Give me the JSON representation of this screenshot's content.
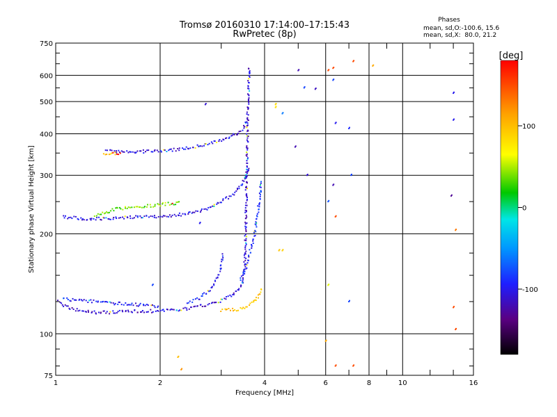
{
  "chart_data": {
    "type": "scatter",
    "title": "Tromsø 20160310 17:14:00–17:15:43",
    "subtitle": "RwPretec (8p)",
    "xlabel": "Frequency [MHz]",
    "ylabel": "Stationary phase Virtual Height [km]",
    "xscale": "log",
    "yscale": "log",
    "xlim": [
      1,
      16
    ],
    "ylim": [
      75,
      750
    ],
    "xticks": [
      1,
      2,
      4,
      6,
      8,
      10,
      16
    ],
    "xtick_labels": [
      "1",
      "2",
      "4",
      "6",
      "8",
      "10",
      "16"
    ],
    "yticks": [
      75,
      100,
      200,
      300,
      400,
      500,
      600,
      750
    ],
    "ytick_labels": [
      "75",
      "100",
      "200",
      "300",
      "400",
      "500",
      "600",
      "750"
    ],
    "grid": true,
    "stats": {
      "heading": "Phases",
      "line_o": "mean, sd,O:-100.6, 15.6",
      "line_x": "mean, sd,X:  80.0, 21.2"
    },
    "colorbar": {
      "label": "[deg]",
      "range": [
        -180,
        180
      ],
      "ticks": [
        100,
        0,
        -100
      ],
      "tick_labels": [
        "100",
        "0",
        "-100"
      ],
      "placement": "right"
    },
    "traces": [
      {
        "points": [
          [
            1.02,
            125
          ],
          [
            1.05,
            122
          ],
          [
            1.1,
            119
          ],
          [
            1.15,
            118
          ],
          [
            1.2,
            117
          ],
          [
            1.3,
            116
          ],
          [
            1.4,
            116
          ],
          [
            1.5,
            116
          ],
          [
            1.6,
            117
          ],
          [
            1.8,
            117
          ],
          [
            2.0,
            117
          ],
          [
            2.2,
            118
          ],
          [
            2.4,
            119
          ],
          [
            2.6,
            121
          ],
          [
            2.8,
            123
          ],
          [
            3.0,
            126
          ],
          [
            3.2,
            130
          ],
          [
            3.35,
            135
          ],
          [
            3.45,
            142
          ],
          [
            3.5,
            155
          ],
          [
            3.52,
            175
          ],
          [
            3.53,
            200
          ],
          [
            3.54,
            240
          ],
          [
            3.55,
            280
          ],
          [
            3.56,
            330
          ],
          [
            3.57,
            400
          ],
          [
            3.58,
            480
          ],
          [
            3.6,
            560
          ],
          [
            3.62,
            640
          ]
        ],
        "phase": -110
      },
      {
        "points": [
          [
            1.05,
            127
          ],
          [
            1.2,
            126
          ],
          [
            1.4,
            124
          ],
          [
            1.6,
            123
          ],
          [
            1.8,
            122
          ],
          [
            2.0,
            121
          ]
        ],
        "phase": -100
      },
      {
        "points": [
          [
            2.4,
            124
          ],
          [
            2.6,
            128
          ],
          [
            2.8,
            136
          ],
          [
            2.95,
            150
          ],
          [
            3.0,
            162
          ],
          [
            3.05,
            175
          ]
        ],
        "phase": -95
      },
      {
        "points": [
          [
            3.0,
            118
          ],
          [
            3.3,
            118
          ],
          [
            3.5,
            120
          ],
          [
            3.7,
            124
          ],
          [
            3.85,
            130
          ],
          [
            3.95,
            138
          ]
        ],
        "phase": 95
      },
      {
        "points": [
          [
            3.4,
            145
          ],
          [
            3.55,
            160
          ],
          [
            3.65,
            180
          ],
          [
            3.75,
            200
          ],
          [
            3.82,
            230
          ],
          [
            3.88,
            260
          ],
          [
            3.92,
            290
          ]
        ],
        "phase": -90
      },
      {
        "points": [
          [
            1.05,
            225
          ],
          [
            1.2,
            222
          ],
          [
            1.4,
            222
          ],
          [
            1.6,
            224
          ],
          [
            1.8,
            225
          ],
          [
            2.0,
            226
          ],
          [
            2.2,
            227
          ],
          [
            2.4,
            230
          ],
          [
            2.6,
            234
          ],
          [
            2.8,
            240
          ],
          [
            3.0,
            250
          ],
          [
            3.2,
            260
          ],
          [
            3.35,
            272
          ],
          [
            3.45,
            285
          ],
          [
            3.55,
            300
          ],
          [
            3.6,
            320
          ]
        ],
        "phase": -105
      },
      {
        "points": [
          [
            1.3,
            226
          ],
          [
            1.5,
            238
          ],
          [
            1.7,
            240
          ],
          [
            2.0,
            245
          ],
          [
            2.3,
            248
          ]
        ],
        "phase": 40
      },
      {
        "points": [
          [
            1.4,
            355
          ],
          [
            1.6,
            352
          ],
          [
            1.8,
            354
          ],
          [
            2.0,
            356
          ],
          [
            2.2,
            358
          ],
          [
            2.4,
            362
          ],
          [
            2.6,
            368
          ],
          [
            2.8,
            375
          ],
          [
            3.0,
            383
          ],
          [
            3.2,
            392
          ],
          [
            3.4,
            405
          ],
          [
            3.5,
            420
          ],
          [
            3.55,
            440
          ]
        ],
        "phase": -105
      },
      {
        "points": [
          [
            1.38,
            345
          ],
          [
            1.45,
            348
          ],
          [
            1.55,
            350
          ]
        ],
        "phase": 90
      }
    ],
    "isolated_points": [
      [
        4.3,
        490,
        85
      ],
      [
        4.3,
        480,
        80
      ],
      [
        4.4,
        178,
        95
      ],
      [
        4.5,
        178,
        90
      ],
      [
        4.5,
        460,
        -60
      ],
      [
        4.9,
        365,
        -120
      ],
      [
        5.0,
        620,
        -120
      ],
      [
        5.2,
        550,
        -80
      ],
      [
        5.3,
        300,
        -110
      ],
      [
        5.6,
        545,
        -115
      ],
      [
        6.1,
        620,
        150
      ],
      [
        6.1,
        250,
        -75
      ],
      [
        6.1,
        140,
        60
      ],
      [
        6.3,
        630,
        150
      ],
      [
        6.3,
        580,
        -80
      ],
      [
        6.4,
        430,
        -100
      ],
      [
        6.3,
        280,
        -120
      ],
      [
        6.4,
        225,
        150
      ],
      [
        6.0,
        95,
        110
      ],
      [
        6.4,
        80,
        150
      ],
      [
        7.2,
        80,
        150
      ],
      [
        7.2,
        660,
        150
      ],
      [
        7.0,
        415,
        -90
      ],
      [
        7.1,
        300,
        -80
      ],
      [
        7.0,
        125,
        -80
      ],
      [
        8.2,
        640,
        110
      ],
      [
        14.0,
        530,
        -100
      ],
      [
        14.0,
        440,
        -100
      ],
      [
        13.8,
        260,
        -130
      ],
      [
        14.2,
        205,
        130
      ],
      [
        14.0,
        120,
        150
      ],
      [
        14.2,
        103,
        150
      ],
      [
        2.25,
        85,
        100
      ],
      [
        2.3,
        78,
        120
      ],
      [
        1.9,
        140,
        -80
      ],
      [
        2.7,
        490,
        -110
      ],
      [
        2.6,
        215,
        -100
      ]
    ]
  }
}
